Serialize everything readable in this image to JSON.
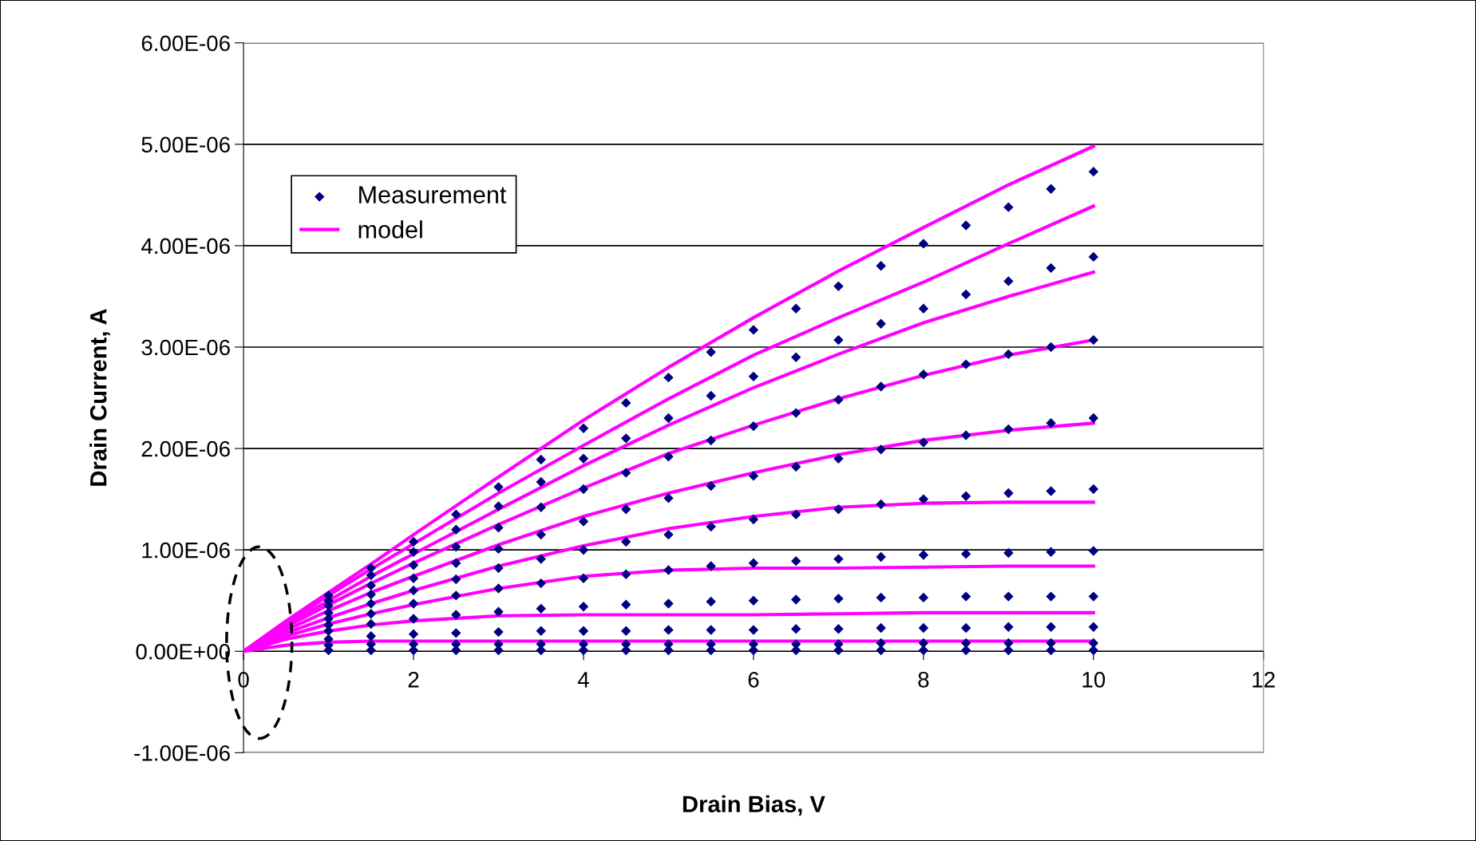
{
  "chart_data": {
    "type": "scatter",
    "xlabel": "Drain Bias, V",
    "ylabel": "Drain Current, A",
    "xlim": [
      0,
      12
    ],
    "xticks": [
      0,
      2,
      4,
      6,
      8,
      10,
      12
    ],
    "ylim": [
      -1e-06,
      6e-06
    ],
    "yticks": [
      {
        "value": -1e-06,
        "label": "-1.00E-06"
      },
      {
        "value": 0,
        "label": "0.00E+00"
      },
      {
        "value": 1e-06,
        "label": "1.00E-06"
      },
      {
        "value": 2e-06,
        "label": "2.00E-06"
      },
      {
        "value": 3e-06,
        "label": "3.00E-06"
      },
      {
        "value": 4e-06,
        "label": "4.00E-06"
      },
      {
        "value": 5e-06,
        "label": "5.00E-06"
      },
      {
        "value": 6e-06,
        "label": "6.00E-06"
      }
    ],
    "grid": "y",
    "legend": "top left",
    "series": [
      {
        "name": "Measurement",
        "marker": "diamond",
        "color": "#000080",
        "x": [
          1,
          1.5,
          2,
          2.5,
          3,
          3.5,
          4,
          4.5,
          5,
          5.5,
          6,
          6.5,
          7,
          7.5,
          8,
          8.5,
          9,
          9.5,
          10
        ],
        "values": [
          5.5e-07,
          8.2e-07,
          1.08e-06,
          1.35e-06,
          1.62e-06,
          1.89e-06,
          2.2e-06,
          2.45e-06,
          2.7e-06,
          2.95e-06,
          3.17e-06,
          3.38e-06,
          3.6e-06,
          3.8e-06,
          4.02e-06,
          4.2e-06,
          4.38e-06,
          4.56e-06,
          4.73e-06
        ]
      },
      {
        "marker": "diamond",
        "color": "#000080",
        "x": [
          1,
          1.5,
          2,
          2.5,
          3,
          3.5,
          4,
          4.5,
          5,
          5.5,
          6,
          6.5,
          7,
          7.5,
          8,
          8.5,
          9,
          9.5,
          10
        ],
        "values": [
          5e-07,
          7.5e-07,
          9.8e-07,
          1.2e-06,
          1.43e-06,
          1.67e-06,
          1.9e-06,
          2.1e-06,
          2.3e-06,
          2.52e-06,
          2.71e-06,
          2.9e-06,
          3.07e-06,
          3.23e-06,
          3.38e-06,
          3.52e-06,
          3.65e-06,
          3.78e-06,
          3.89e-06
        ]
      },
      {
        "marker": "diamond",
        "color": "#000080",
        "x": [
          1,
          1.5,
          2,
          2.5,
          3,
          3.5,
          4,
          4.5,
          5,
          5.5,
          6,
          6.5,
          7,
          7.5,
          8,
          8.5,
          9,
          9.5,
          10
        ],
        "values": [
          4.5e-07,
          6.5e-07,
          8.5e-07,
          1.03e-06,
          1.22e-06,
          1.42e-06,
          1.6e-06,
          1.76e-06,
          1.92e-06,
          2.08e-06,
          2.22e-06,
          2.35e-06,
          2.48e-06,
          2.61e-06,
          2.73e-06,
          2.83e-06,
          2.93e-06,
          3e-06,
          3.07e-06
        ]
      },
      {
        "marker": "diamond",
        "color": "#000080",
        "x": [
          1,
          1.5,
          2,
          2.5,
          3,
          3.5,
          4,
          4.5,
          5,
          5.5,
          6,
          6.5,
          7,
          7.5,
          8,
          8.5,
          9,
          9.5,
          10
        ],
        "values": [
          3.8e-07,
          5.6e-07,
          7.2e-07,
          8.7e-07,
          1.01e-06,
          1.15e-06,
          1.28e-06,
          1.4e-06,
          1.51e-06,
          1.63e-06,
          1.73e-06,
          1.82e-06,
          1.9e-06,
          1.99e-06,
          2.06e-06,
          2.13e-06,
          2.19e-06,
          2.25e-06,
          2.3e-06
        ]
      },
      {
        "marker": "diamond",
        "color": "#000080",
        "x": [
          1,
          1.5,
          2,
          2.5,
          3,
          3.5,
          4,
          4.5,
          5,
          5.5,
          6,
          6.5,
          7,
          7.5,
          8,
          8.5,
          9,
          9.5,
          10
        ],
        "values": [
          3.2e-07,
          4.7e-07,
          6e-07,
          7.1e-07,
          8.2e-07,
          9.1e-07,
          1e-06,
          1.08e-06,
          1.15e-06,
          1.23e-06,
          1.3e-06,
          1.35e-06,
          1.4e-06,
          1.45e-06,
          1.5e-06,
          1.53e-06,
          1.56e-06,
          1.58e-06,
          1.6e-06
        ]
      },
      {
        "marker": "diamond",
        "color": "#000080",
        "x": [
          1,
          1.5,
          2,
          2.5,
          3,
          3.5,
          4,
          4.5,
          5,
          5.5,
          6,
          6.5,
          7,
          7.5,
          8,
          8.5,
          9,
          9.5,
          10
        ],
        "values": [
          2.6e-07,
          3.7e-07,
          4.7e-07,
          5.5e-07,
          6.2e-07,
          6.7e-07,
          7.2e-07,
          7.6e-07,
          8e-07,
          8.4e-07,
          8.7e-07,
          8.9e-07,
          9.1e-07,
          9.3e-07,
          9.5e-07,
          9.6e-07,
          9.7e-07,
          9.8e-07,
          9.9e-07
        ]
      },
      {
        "marker": "diamond",
        "color": "#000080",
        "x": [
          1,
          1.5,
          2,
          2.5,
          3,
          3.5,
          4,
          4.5,
          5,
          5.5,
          6,
          6.5,
          7,
          7.5,
          8,
          8.5,
          9,
          9.5,
          10
        ],
        "values": [
          2e-07,
          2.7e-07,
          3.2e-07,
          3.6e-07,
          3.9e-07,
          4.2e-07,
          4.4e-07,
          4.6e-07,
          4.7e-07,
          4.9e-07,
          5e-07,
          5.1e-07,
          5.2e-07,
          5.3e-07,
          5.3e-07,
          5.4e-07,
          5.4e-07,
          5.4e-07,
          5.4e-07
        ]
      },
      {
        "marker": "diamond",
        "color": "#000080",
        "x": [
          1,
          1.5,
          2,
          2.5,
          3,
          3.5,
          4,
          4.5,
          5,
          5.5,
          6,
          6.5,
          7,
          7.5,
          8,
          8.5,
          9,
          9.5,
          10
        ],
        "values": [
          1.2e-07,
          1.5e-07,
          1.7e-07,
          1.8e-07,
          1.9e-07,
          2e-07,
          2e-07,
          2e-07,
          2.1e-07,
          2.1e-07,
          2.1e-07,
          2.2e-07,
          2.2e-07,
          2.3e-07,
          2.3e-07,
          2.3e-07,
          2.4e-07,
          2.4e-07,
          2.4e-07
        ]
      },
      {
        "marker": "diamond",
        "color": "#000080",
        "x": [
          1,
          1.5,
          2,
          2.5,
          3,
          3.5,
          4,
          4.5,
          5,
          5.5,
          6,
          6.5,
          7,
          7.5,
          8,
          8.5,
          9,
          9.5,
          10
        ],
        "values": [
          6e-08,
          7e-08,
          7e-08,
          7e-08,
          7e-08,
          7e-08,
          7e-08,
          7e-08,
          7e-08,
          7e-08,
          7e-08,
          7e-08,
          7e-08,
          8e-08,
          8e-08,
          8e-08,
          8e-08,
          8e-08,
          8e-08
        ]
      },
      {
        "marker": "diamond",
        "color": "#000080",
        "x": [
          1,
          1.5,
          2,
          2.5,
          3,
          3.5,
          4,
          4.5,
          5,
          5.5,
          6,
          6.5,
          7,
          7.5,
          8,
          8.5,
          9,
          9.5,
          10
        ],
        "values": [
          1e-08,
          1e-08,
          1e-08,
          1e-08,
          1e-08,
          1e-08,
          1e-08,
          1e-08,
          1e-08,
          1e-08,
          1e-08,
          1e-08,
          1e-08,
          1e-08,
          1e-08,
          1e-08,
          1e-08,
          1e-08,
          1e-08
        ]
      },
      {
        "name": "model",
        "type": "line",
        "line_style": "solid",
        "color": "#ff00ff",
        "x": [
          0,
          0.5,
          1,
          1.5,
          2,
          3,
          4,
          5,
          6,
          7,
          8,
          9,
          10
        ],
        "values": [
          0,
          3e-07,
          5.8e-07,
          8.6e-07,
          1.15e-06,
          1.72e-06,
          2.28e-06,
          2.8e-06,
          3.29e-06,
          3.75e-06,
          4.18e-06,
          4.6e-06,
          4.98e-06
        ]
      },
      {
        "type": "line",
        "line_style": "solid",
        "color": "#ff00ff",
        "x": [
          0,
          0.5,
          1,
          1.5,
          2,
          3,
          4,
          5,
          6,
          7,
          8,
          9,
          10
        ],
        "values": [
          0,
          2.8e-07,
          5.5e-07,
          8.1e-07,
          1.06e-06,
          1.56e-06,
          2.03e-06,
          2.49e-06,
          2.92e-06,
          3.29e-06,
          3.64e-06,
          4.02e-06,
          4.39e-06
        ]
      },
      {
        "type": "line",
        "line_style": "solid",
        "color": "#ff00ff",
        "x": [
          0,
          0.5,
          1,
          1.5,
          2,
          3,
          4,
          5,
          6,
          7,
          8,
          9,
          10
        ],
        "values": [
          0,
          2.6e-07,
          5e-07,
          7.4e-07,
          9.6e-07,
          1.4e-06,
          1.83e-06,
          2.23e-06,
          2.6e-06,
          2.93e-06,
          3.24e-06,
          3.5e-06,
          3.74e-06
        ]
      },
      {
        "type": "line",
        "line_style": "solid",
        "color": "#ff00ff",
        "x": [
          0,
          0.5,
          1,
          1.5,
          2,
          3,
          4,
          5,
          6,
          7,
          8,
          9,
          10
        ],
        "values": [
          0,
          2.4e-07,
          4.6e-07,
          6.7e-07,
          8.7e-07,
          1.25e-06,
          1.61e-06,
          1.95e-06,
          2.23e-06,
          2.49e-06,
          2.72e-06,
          2.92e-06,
          3.07e-06
        ]
      },
      {
        "type": "line",
        "line_style": "solid",
        "color": "#ff00ff",
        "x": [
          0,
          0.5,
          1,
          1.5,
          2,
          3,
          4,
          5,
          6,
          7,
          8,
          9,
          10
        ],
        "values": [
          0,
          2.1e-07,
          4e-07,
          5.8e-07,
          7.4e-07,
          1.05e-06,
          1.33e-06,
          1.56e-06,
          1.76e-06,
          1.94e-06,
          2.08e-06,
          2.18e-06,
          2.25e-06
        ]
      },
      {
        "type": "line",
        "line_style": "solid",
        "color": "#ff00ff",
        "x": [
          0,
          0.5,
          1,
          1.5,
          2,
          3,
          4,
          5,
          6,
          7,
          8,
          9,
          10
        ],
        "values": [
          0,
          1.8e-07,
          3.3e-07,
          4.7e-07,
          6e-07,
          8.4e-07,
          1.04e-06,
          1.21e-06,
          1.33e-06,
          1.42e-06,
          1.46e-06,
          1.47e-06,
          1.47e-06
        ]
      },
      {
        "type": "line",
        "line_style": "solid",
        "color": "#ff00ff",
        "x": [
          0,
          0.5,
          1,
          1.5,
          2,
          3,
          4,
          5,
          6,
          7,
          8,
          9,
          10
        ],
        "values": [
          0,
          1.5e-07,
          2.7e-07,
          3.7e-07,
          4.6e-07,
          6.2e-07,
          7.4e-07,
          8e-07,
          8.2e-07,
          8.2e-07,
          8.3e-07,
          8.4e-07,
          8.4e-07
        ]
      },
      {
        "type": "line",
        "line_style": "solid",
        "color": "#ff00ff",
        "x": [
          0,
          0.5,
          1,
          1.5,
          2,
          3,
          4,
          5,
          6,
          7,
          8,
          9,
          10
        ],
        "values": [
          0,
          1.2e-07,
          2e-07,
          2.6e-07,
          3e-07,
          3.5e-07,
          3.6e-07,
          3.6e-07,
          3.6e-07,
          3.7e-07,
          3.8e-07,
          3.8e-07,
          3.8e-07
        ]
      },
      {
        "type": "line",
        "line_style": "solid",
        "color": "#ff00ff",
        "x": [
          0,
          0.5,
          1,
          1.5,
          2,
          3,
          4,
          5,
          6,
          7,
          8,
          9,
          10
        ],
        "values": [
          0,
          6e-08,
          9e-08,
          1e-07,
          1e-07,
          1e-07,
          1e-07,
          1e-07,
          1e-07,
          1e-07,
          1e-07,
          1e-07,
          1e-07
        ]
      }
    ]
  }
}
